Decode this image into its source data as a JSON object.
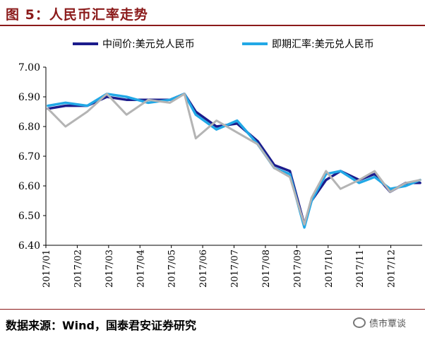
{
  "header": {
    "title": "图 5：人民币汇率走势"
  },
  "footer": {
    "source": "数据来源：Wind，国泰君安证券研究",
    "watermark": "债市覃谈"
  },
  "colors": {
    "title": "#8b1a1a",
    "central_parity": "#1c1c8c",
    "spot": "#22a8e6",
    "grey": "#b4b4b4"
  },
  "chart_data": {
    "type": "line",
    "title": "",
    "xlabel": "",
    "ylabel": "",
    "ylim": [
      6.4,
      7.0
    ],
    "yticks": [
      "7.00",
      "6.90",
      "6.80",
      "6.70",
      "6.60",
      "6.50",
      "6.40"
    ],
    "xticks": [
      "2017/01",
      "2017/02",
      "2017/03",
      "2017/04",
      "2017/05",
      "2017/06",
      "2017/07",
      "2017/08",
      "2017/09",
      "2017/10",
      "2017/11",
      "2017/12"
    ],
    "legend_position": "top",
    "grid": false,
    "x": [
      "2017-01-03",
      "2017-01-20",
      "2017-02-10",
      "2017-03-01",
      "2017-03-20",
      "2017-04-10",
      "2017-05-01",
      "2017-05-15",
      "2017-05-26",
      "2017-06-15",
      "2017-07-05",
      "2017-07-25",
      "2017-08-10",
      "2017-08-25",
      "2017-09-08",
      "2017-09-15",
      "2017-09-29",
      "2017-10-13",
      "2017-10-31",
      "2017-11-15",
      "2017-11-30",
      "2017-12-15",
      "2017-12-29"
    ],
    "series": [
      {
        "name": "中间价:美元兑人民币",
        "color": "#1c1c8c",
        "values": [
          6.86,
          6.87,
          6.87,
          6.9,
          6.89,
          6.89,
          6.89,
          6.91,
          6.85,
          6.8,
          6.81,
          6.75,
          6.67,
          6.65,
          6.47,
          6.55,
          6.62,
          6.65,
          6.62,
          6.64,
          6.58,
          6.61,
          6.61
        ]
      },
      {
        "name": "即期汇率:美元兑人民币",
        "color": "#22a8e6",
        "values": [
          6.87,
          6.88,
          6.87,
          6.91,
          6.9,
          6.88,
          6.89,
          6.91,
          6.84,
          6.79,
          6.82,
          6.74,
          6.66,
          6.64,
          6.46,
          6.55,
          6.64,
          6.65,
          6.61,
          6.63,
          6.59,
          6.6,
          6.62
        ]
      },
      {
        "name": "",
        "color": "#b4b4b4",
        "values": [
          6.86,
          6.8,
          6.85,
          6.91,
          6.84,
          6.89,
          6.88,
          6.91,
          6.76,
          6.82,
          6.78,
          6.74,
          6.66,
          6.63,
          6.47,
          6.56,
          6.65,
          6.59,
          6.62,
          6.65,
          6.58,
          6.61,
          6.62
        ]
      }
    ]
  }
}
